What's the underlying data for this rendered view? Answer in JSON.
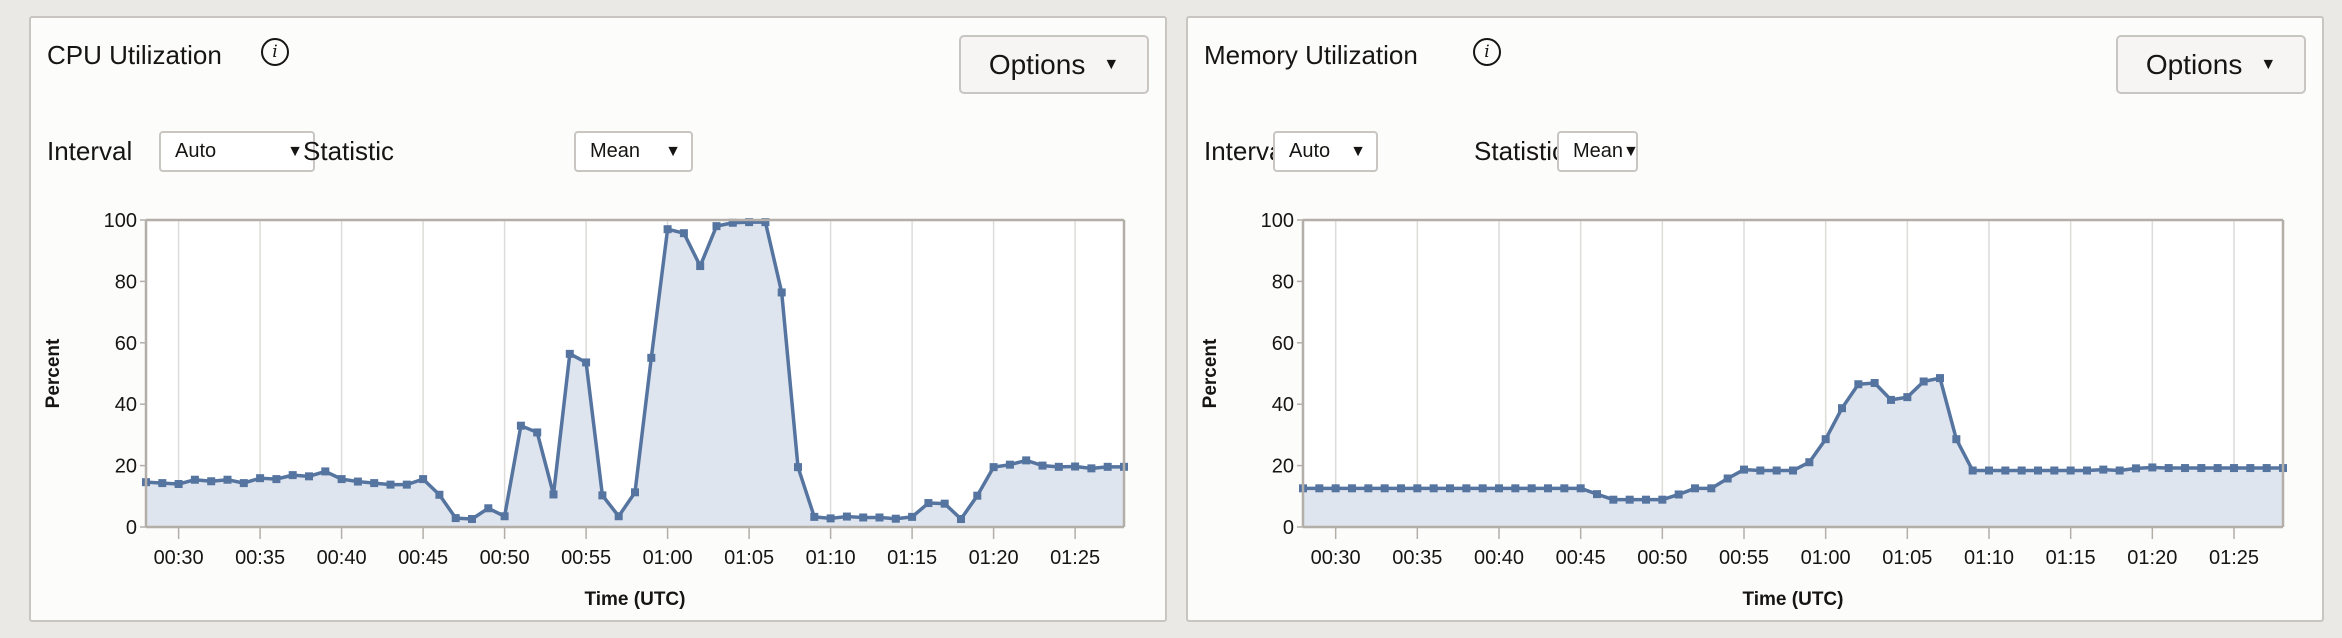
{
  "panels": [
    {
      "title": "CPU Utilization",
      "options_label": "Options",
      "interval_label": "Interval",
      "interval_value": "Auto",
      "statistic_label": "Statistic",
      "statistic_value": "Mean"
    },
    {
      "title": "Memory Utilization",
      "options_label": "Options",
      "interval_label": "Interval",
      "interval_value": "Auto",
      "statistic_label": "Statistic",
      "statistic_value": "Mean"
    }
  ],
  "icons": {
    "info": "info-icon",
    "dropdown": "caret-down-icon"
  },
  "colors": {
    "line": "#5574a0",
    "area": "#dfe5ee",
    "grid": "#dedcd9",
    "axis": "#b3aea8"
  },
  "chart_data": [
    {
      "type": "area",
      "title": "CPU Utilization",
      "xlabel": "Time (UTC)",
      "ylabel": "Percent",
      "ylim": [
        0,
        100
      ],
      "yticks": [
        "0",
        "20",
        "40",
        "60",
        "80",
        "100"
      ],
      "xticks": [
        "00:30",
        "00:35",
        "00:40",
        "00:45",
        "00:50",
        "00:55",
        "01:00",
        "01:05",
        "01:10",
        "01:15",
        "01:20",
        "01:25"
      ],
      "x_start": "00:28",
      "x_step_minutes": 1,
      "grid": "vertical",
      "values": [
        14.6,
        14.3,
        14,
        15.4,
        14.9,
        15.4,
        14.3,
        15.9,
        15.6,
        16.9,
        16.5,
        18.1,
        15.6,
        14.8,
        14.3,
        13.8,
        13.8,
        15.6,
        10.5,
        2.9,
        2.6,
        6.1,
        3.5,
        33,
        30.8,
        10.6,
        56.4,
        53.6,
        10.3,
        3.5,
        11.3,
        55.1,
        97,
        95.7,
        85,
        98,
        99.1,
        99.3,
        99.3,
        76.4,
        19.5,
        3.3,
        2.8,
        3.4,
        3.1,
        3.1,
        2.7,
        3.3,
        7.8,
        7.6,
        2.6,
        10.2,
        19.5,
        20.3,
        21.7,
        20,
        19.6,
        19.7,
        19.1,
        19.6,
        19.6
      ]
    },
    {
      "type": "area",
      "title": "Memory Utilization",
      "xlabel": "Time (UTC)",
      "ylabel": "Percent",
      "ylim": [
        0,
        100
      ],
      "yticks": [
        "0",
        "20",
        "40",
        "60",
        "80",
        "100"
      ],
      "xticks": [
        "00:30",
        "00:35",
        "00:40",
        "00:45",
        "00:50",
        "00:55",
        "01:00",
        "01:05",
        "01:10",
        "01:15",
        "01:20",
        "01:25"
      ],
      "x_start": "00:28",
      "x_step_minutes": 1,
      "grid": "vertical",
      "values": [
        12.6,
        12.6,
        12.6,
        12.6,
        12.6,
        12.6,
        12.6,
        12.6,
        12.6,
        12.6,
        12.6,
        12.6,
        12.6,
        12.6,
        12.6,
        12.6,
        12.6,
        12.6,
        10.7,
        8.9,
        8.9,
        8.9,
        8.9,
        10.6,
        12.6,
        12.6,
        15.8,
        18.7,
        18.4,
        18.4,
        18.4,
        21.1,
        28.6,
        38.7,
        46.5,
        46.9,
        41.4,
        42.3,
        47.4,
        48.5,
        28.6,
        18.4,
        18.4,
        18.4,
        18.4,
        18.4,
        18.4,
        18.4,
        18.4,
        18.7,
        18.4,
        19.1,
        19.4,
        19.2,
        19.2,
        19.2,
        19.2,
        19.2,
        19.2,
        19.2,
        19.2
      ]
    }
  ]
}
